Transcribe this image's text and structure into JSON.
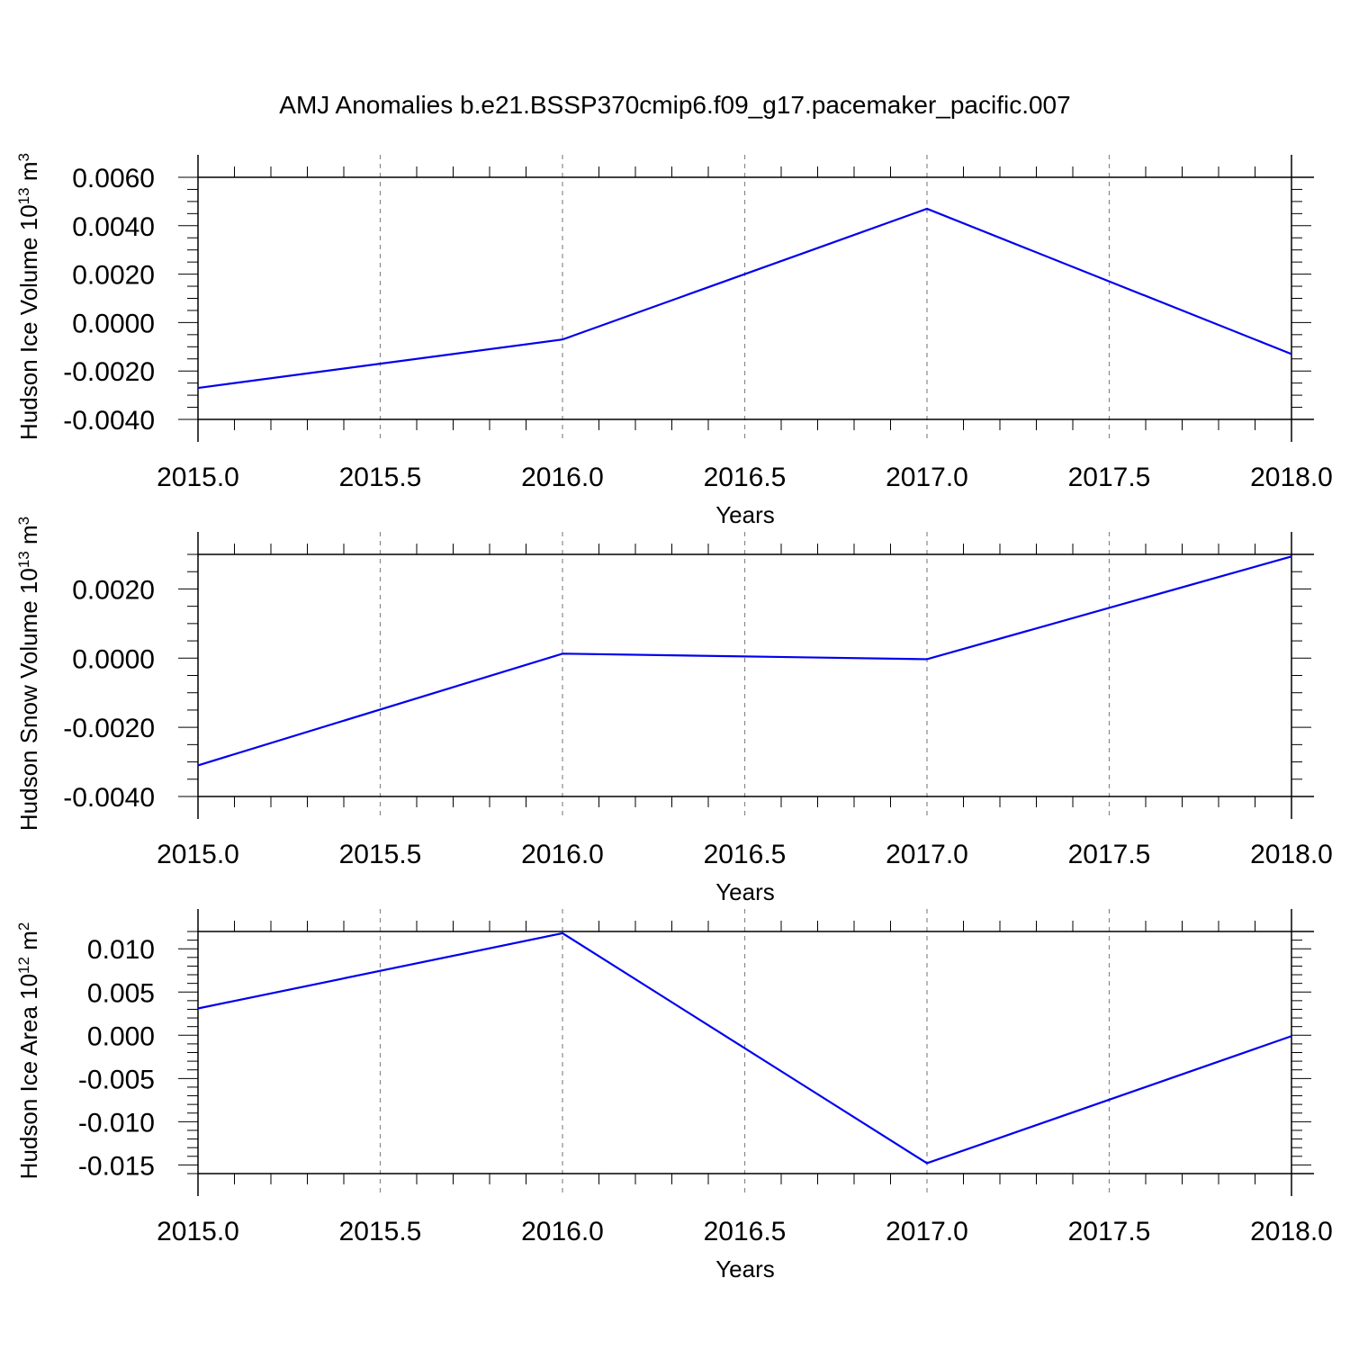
{
  "title": "AMJ Anomalies b.e21.BSSP370cmip6.f09_g17.pacemaker_pacific.007",
  "colors": {
    "line": "#0000ee",
    "axis": "#000000",
    "grid": "#888888"
  },
  "chart_data": [
    {
      "type": "line",
      "xlabel": "Years",
      "ylabel": {
        "text": "Hudson Ice Volume 10",
        "exp": "13",
        "unit": " m",
        "unit_exp": "3"
      },
      "x": [
        2015.0,
        2016.0,
        2017.0,
        2018.0
      ],
      "series": [
        {
          "values": [
            -0.0027,
            -0.0007,
            0.0047,
            -0.0013
          ]
        }
      ],
      "xlim": [
        2015.0,
        2018.0
      ],
      "ylim": [
        -0.004,
        0.006
      ],
      "xticks": [
        2015.0,
        2015.5,
        2016.0,
        2016.5,
        2017.0,
        2017.5,
        2018.0
      ],
      "xtick_labels": [
        "2015.0",
        "2015.5",
        "2016.0",
        "2016.5",
        "2017.0",
        "2017.5",
        "2018.0"
      ],
      "yticks": [
        -0.004,
        -0.002,
        0.0,
        0.002,
        0.004,
        0.006
      ],
      "ytick_labels": [
        "-0.0040",
        "-0.0020",
        "0.0000",
        "0.0020",
        "0.0040",
        "0.0060"
      ],
      "yminor_step": 0.0005,
      "grid": "vertical dashed"
    },
    {
      "type": "line",
      "xlabel": "Years",
      "ylabel": {
        "text": "Hudson Snow Volume 10",
        "exp": "13",
        "unit": " m",
        "unit_exp": "3"
      },
      "x": [
        2015.0,
        2016.0,
        2017.0,
        2018.0
      ],
      "series": [
        {
          "values": [
            -0.0031,
            0.00013,
            -3e-05,
            0.00294
          ]
        }
      ],
      "xlim": [
        2015.0,
        2018.0
      ],
      "ylim": [
        -0.004,
        0.003
      ],
      "xticks": [
        2015.0,
        2015.5,
        2016.0,
        2016.5,
        2017.0,
        2017.5,
        2018.0
      ],
      "xtick_labels": [
        "2015.0",
        "2015.5",
        "2016.0",
        "2016.5",
        "2017.0",
        "2017.5",
        "2018.0"
      ],
      "yticks": [
        -0.004,
        -0.002,
        0.0,
        0.002
      ],
      "ytick_labels": [
        "-0.0040",
        "-0.0020",
        "0.0000",
        "0.0020"
      ],
      "yminor_step": 0.0005,
      "grid": "vertical dashed"
    },
    {
      "type": "line",
      "xlabel": "Years",
      "ylabel": {
        "text": "Hudson Ice Area 10",
        "exp": "12",
        "unit": " m",
        "unit_exp": "2"
      },
      "x": [
        2015.0,
        2016.0,
        2017.0,
        2018.0
      ],
      "series": [
        {
          "values": [
            0.0031,
            0.0118,
            -0.0148,
            -0.0001
          ]
        }
      ],
      "xlim": [
        2015.0,
        2018.0
      ],
      "ylim": [
        -0.016,
        0.012
      ],
      "xticks": [
        2015.0,
        2015.5,
        2016.0,
        2016.5,
        2017.0,
        2017.5,
        2018.0
      ],
      "xtick_labels": [
        "2015.0",
        "2015.5",
        "2016.0",
        "2016.5",
        "2017.0",
        "2017.5",
        "2018.0"
      ],
      "yticks": [
        -0.015,
        -0.01,
        -0.005,
        0.0,
        0.005,
        0.01
      ],
      "ytick_labels": [
        "-0.015",
        "-0.010",
        "-0.005",
        "0.000",
        "0.005",
        "0.010"
      ],
      "yminor_step": 0.001,
      "grid": "vertical dashed"
    }
  ]
}
